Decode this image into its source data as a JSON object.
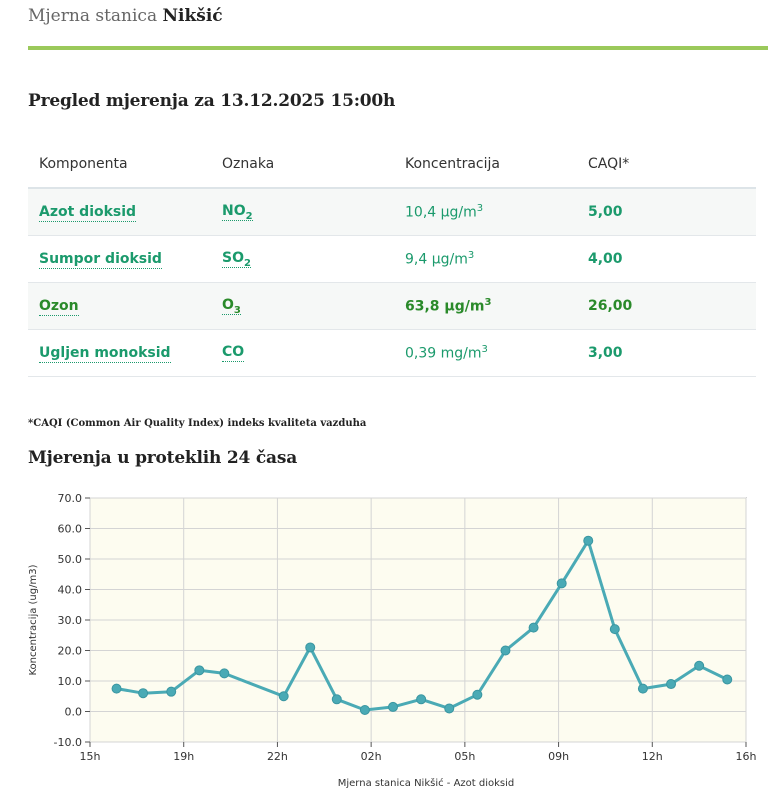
{
  "header": {
    "station_prefix": "Mjerna stanica",
    "station_name": "Nikšić"
  },
  "overview": {
    "title": "Pregled mjerenja za 13.12.2025 15:00h"
  },
  "table": {
    "columns": [
      "Komponenta",
      "Oznaka",
      "Koncentracija",
      "CAQI*"
    ],
    "rows": [
      {
        "component": "Azot dioksid",
        "symbol": "NO",
        "symbol_sub": "2",
        "value": "10,4 µg/m",
        "value_sup": "3",
        "caqi": "5,00"
      },
      {
        "component": "Sumpor dioksid",
        "symbol": "SO",
        "symbol_sub": "2",
        "value": "9,4 µg/m",
        "value_sup": "3",
        "caqi": "4,00"
      },
      {
        "component": "Ozon",
        "symbol": "O",
        "symbol_sub": "3",
        "value": "63,8 µg/m",
        "value_sup": "3",
        "caqi": "26,00"
      },
      {
        "component": "Ugljen monoksid",
        "symbol": "CO",
        "symbol_sub": "",
        "value": "0,39 mg/m",
        "value_sup": "3",
        "caqi": "3,00"
      }
    ]
  },
  "footnote": "*CAQI (Common Air Quality Index) indeks kvaliteta vazduha",
  "history": {
    "title": "Mjerenja u proteklih 24 časa"
  },
  "colors": {
    "accent_green": "#9bc95b",
    "link_green": "#1b9a6c",
    "line": "#4aaab5",
    "plot_bg": "#fdfcf0"
  },
  "chart_data": {
    "type": "line",
    "title": "",
    "xlabel": "Mjerna stanica Nikšić - Azot dioksid",
    "ylabel": "Koncentracija (ug/m3)",
    "ylim": [
      -10,
      70
    ],
    "y_ticks": [
      "70.0",
      "60.0",
      "50.0",
      "40.0",
      "30.0",
      "20.0",
      "10.0",
      "0.0",
      "-10.0"
    ],
    "y_tick_values": [
      70,
      60,
      50,
      40,
      30,
      20,
      10,
      0,
      -10
    ],
    "x_ticks": [
      "15h",
      "19h",
      "22h",
      "02h",
      "05h",
      "09h",
      "12h",
      "16h"
    ],
    "x_tick_hours": [
      0,
      3,
      6,
      9,
      12,
      15,
      18,
      21
    ],
    "xlim_hours": [
      0,
      21
    ],
    "x_hours": [
      0.85,
      1.7,
      2.6,
      3.5,
      4.3,
      6.2,
      7.05,
      7.9,
      8.8,
      9.7,
      10.6,
      11.5,
      12.4,
      13.3,
      14.2,
      15.1,
      15.95,
      16.8,
      17.7,
      18.6,
      19.5,
      20.4
    ],
    "series": [
      {
        "name": "Azot dioksid",
        "values": [
          7.5,
          6,
          6.5,
          13.5,
          12.5,
          5,
          21,
          4,
          0.5,
          1.5,
          4,
          1,
          5.5,
          20,
          27.5,
          42,
          56,
          27,
          7.5,
          9,
          15,
          10.5
        ]
      }
    ],
    "grid": true
  }
}
